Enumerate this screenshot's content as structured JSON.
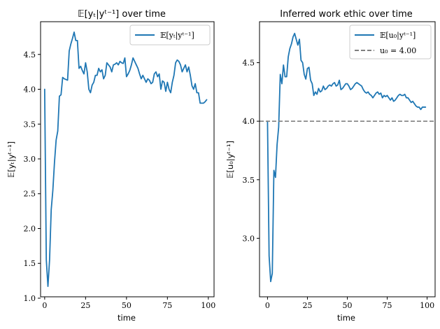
{
  "chart_data": [
    {
      "type": "line",
      "title": "𝔼[yₜ|yᵗ⁻¹] over time",
      "xlabel": "time",
      "ylabel": "𝔼[yₜ|yᵗ⁻¹]",
      "xlim": [
        -2.5,
        103.5
      ],
      "ylim": [
        1.02,
        4.97
      ],
      "xticks": [
        0,
        25,
        50,
        75,
        100
      ],
      "yticks": [
        1.0,
        1.5,
        2.0,
        2.5,
        3.0,
        3.5,
        4.0,
        4.5
      ],
      "ytick_labels": [
        "1.0",
        "1.5",
        "2.0",
        "2.5",
        "3.0",
        "3.5",
        "4.0",
        "4.5"
      ],
      "legend": "upper right",
      "series": [
        {
          "name": "𝔼[yₜ|yᵗ⁻¹]",
          "color": "#1f77b4",
          "x": [
            0,
            1,
            2,
            3,
            4,
            5,
            6,
            7,
            8,
            9,
            10,
            11,
            12,
            13,
            14,
            15,
            16,
            17,
            18,
            19,
            20,
            21,
            22,
            23,
            24,
            25,
            26,
            27,
            28,
            29,
            30,
            31,
            32,
            33,
            34,
            35,
            36,
            37,
            38,
            39,
            40,
            41,
            42,
            43,
            44,
            45,
            46,
            47,
            48,
            49,
            50,
            51,
            52,
            53,
            54,
            55,
            56,
            57,
            58,
            59,
            60,
            61,
            62,
            63,
            64,
            65,
            66,
            67,
            68,
            69,
            70,
            71,
            72,
            73,
            74,
            75,
            76,
            77,
            78,
            79,
            80,
            81,
            82,
            83,
            84,
            85,
            86,
            87,
            88,
            89,
            90,
            91,
            92,
            93,
            94,
            95,
            96,
            97,
            98,
            99
          ],
          "y": [
            4.0,
            1.55,
            1.17,
            1.55,
            2.27,
            2.55,
            2.95,
            3.27,
            3.4,
            3.9,
            3.92,
            4.17,
            4.15,
            4.14,
            4.13,
            4.55,
            4.65,
            4.73,
            4.82,
            4.7,
            4.7,
            4.3,
            4.33,
            4.27,
            4.22,
            4.38,
            4.25,
            4.0,
            3.95,
            4.06,
            4.1,
            4.2,
            4.2,
            4.3,
            4.25,
            4.28,
            4.15,
            4.2,
            4.38,
            4.35,
            4.32,
            4.25,
            4.35,
            4.36,
            4.38,
            4.35,
            4.4,
            4.38,
            4.37,
            4.45,
            4.18,
            4.22,
            4.27,
            4.35,
            4.45,
            4.4,
            4.35,
            4.3,
            4.22,
            4.15,
            4.2,
            4.15,
            4.1,
            4.15,
            4.13,
            4.08,
            4.1,
            4.22,
            4.25,
            4.18,
            4.22,
            4.0,
            4.12,
            4.1,
            3.97,
            4.1,
            4.0,
            3.95,
            4.1,
            4.2,
            4.38,
            4.42,
            4.4,
            4.35,
            4.25,
            4.3,
            4.35,
            4.25,
            4.32,
            4.2,
            4.05,
            4.0,
            4.08,
            3.95,
            3.95,
            3.8,
            3.8,
            3.8,
            3.82,
            3.85
          ]
        }
      ]
    },
    {
      "type": "line",
      "title": "Inferred work ethic over time",
      "xlabel": "time",
      "ylabel": "𝔼[u₀|yᵗ⁻¹]",
      "xlim": [
        -5,
        105
      ],
      "ylim": [
        2.5,
        4.85
      ],
      "xticks": [
        0,
        25,
        50,
        75,
        100
      ],
      "yticks": [
        3.0,
        3.5,
        4.0,
        4.5
      ],
      "ytick_labels": [
        "3.0",
        "3.5",
        "4.0",
        "4.5"
      ],
      "legend": "upper right",
      "series": [
        {
          "name": "𝔼[u₀|yᵗ⁻¹]",
          "color": "#1f77b4",
          "x": [
            0,
            1,
            2,
            3,
            4,
            5,
            6,
            7,
            8,
            9,
            10,
            11,
            12,
            13,
            14,
            15,
            16,
            17,
            18,
            19,
            20,
            21,
            22,
            23,
            24,
            25,
            26,
            27,
            28,
            29,
            30,
            31,
            32,
            33,
            34,
            35,
            36,
            37,
            38,
            39,
            40,
            41,
            42,
            43,
            44,
            45,
            46,
            47,
            48,
            49,
            50,
            51,
            52,
            53,
            54,
            55,
            56,
            57,
            58,
            59,
            60,
            61,
            62,
            63,
            64,
            65,
            66,
            67,
            68,
            69,
            70,
            71,
            72,
            73,
            74,
            75,
            76,
            77,
            78,
            79,
            80,
            81,
            82,
            83,
            84,
            85,
            86,
            87,
            88,
            89,
            90,
            91,
            92,
            93,
            94,
            95,
            96,
            97,
            98,
            99
          ],
          "y": [
            4.0,
            2.85,
            2.63,
            2.7,
            3.58,
            3.52,
            3.8,
            3.95,
            4.4,
            4.32,
            4.48,
            4.38,
            4.38,
            4.55,
            4.62,
            4.66,
            4.72,
            4.75,
            4.7,
            4.65,
            4.7,
            4.52,
            4.5,
            4.4,
            4.36,
            4.45,
            4.46,
            4.35,
            4.32,
            4.22,
            4.25,
            4.23,
            4.28,
            4.25,
            4.26,
            4.3,
            4.27,
            4.28,
            4.3,
            4.31,
            4.3,
            4.32,
            4.33,
            4.3,
            4.31,
            4.35,
            4.27,
            4.28,
            4.3,
            4.32,
            4.32,
            4.3,
            4.27,
            4.28,
            4.3,
            4.32,
            4.33,
            4.32,
            4.31,
            4.3,
            4.27,
            4.25,
            4.24,
            4.25,
            4.23,
            4.22,
            4.2,
            4.22,
            4.24,
            4.25,
            4.23,
            4.24,
            4.2,
            4.22,
            4.21,
            4.22,
            4.2,
            4.18,
            4.2,
            4.17,
            4.18,
            4.2,
            4.22,
            4.23,
            4.22,
            4.22,
            4.23,
            4.2,
            4.2,
            4.18,
            4.16,
            4.17,
            4.15,
            4.13,
            4.12,
            4.12,
            4.1,
            4.12,
            4.12,
            4.12
          ]
        },
        {
          "name": "u₀ = 4.00",
          "color": "#808080",
          "dashed": true,
          "hline": 4.0
        }
      ]
    }
  ]
}
